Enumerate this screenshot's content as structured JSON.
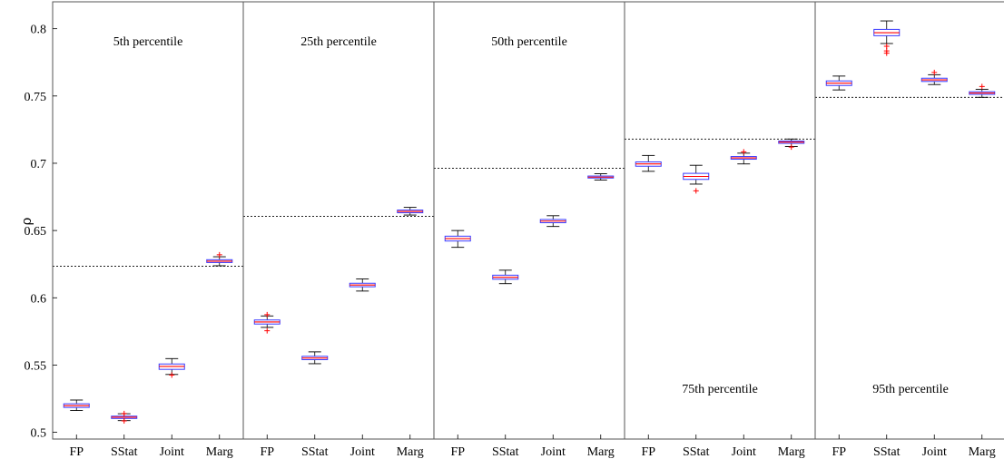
{
  "chart_data": {
    "type": "box",
    "ylabel": "ρ",
    "ylim": [
      0.495,
      0.82
    ],
    "yticks": [
      0.5,
      0.55,
      0.6,
      0.65,
      0.7,
      0.75,
      0.8
    ],
    "ytick_labels": [
      "0.5",
      "0.55",
      "0.6",
      "0.65",
      "0.7",
      "0.75",
      "0.8"
    ],
    "categories": [
      "FP",
      "SStat",
      "Joint",
      "Marg"
    ],
    "colors": {
      "box": "#3a3aff",
      "median": "#ff0000",
      "whisker": "#000000",
      "outlier": "#ff0000",
      "reference": "#000000"
    },
    "panels": [
      {
        "label": "5th percentile",
        "label_position": "top",
        "reference": 0.6235,
        "boxes": [
          {
            "q1": 0.5185,
            "median": 0.5198,
            "q3": 0.5212,
            "low": 0.5162,
            "high": 0.524,
            "outliers": []
          },
          {
            "q1": 0.5103,
            "median": 0.5112,
            "q3": 0.512,
            "low": 0.5087,
            "high": 0.5138,
            "outliers": [
              0.5085,
              0.514
            ]
          },
          {
            "q1": 0.5468,
            "median": 0.549,
            "q3": 0.5508,
            "low": 0.543,
            "high": 0.5548,
            "outliers": [
              0.5425
            ]
          },
          {
            "q1": 0.6262,
            "median": 0.6272,
            "q3": 0.6283,
            "low": 0.6238,
            "high": 0.6305,
            "outliers": [
              0.632
            ]
          }
        ]
      },
      {
        "label": "25th percentile",
        "label_position": "top",
        "reference": 0.6605,
        "boxes": [
          {
            "q1": 0.5805,
            "median": 0.582,
            "q3": 0.5835,
            "low": 0.578,
            "high": 0.5865,
            "outliers": [
              0.5755,
              0.5875
            ]
          },
          {
            "q1": 0.554,
            "median": 0.5552,
            "q3": 0.5565,
            "low": 0.551,
            "high": 0.5598,
            "outliers": []
          },
          {
            "q1": 0.6082,
            "median": 0.6095,
            "q3": 0.6108,
            "low": 0.605,
            "high": 0.614,
            "outliers": []
          },
          {
            "q1": 0.6632,
            "median": 0.6642,
            "q3": 0.6652,
            "low": 0.6615,
            "high": 0.6672,
            "outliers": []
          }
        ]
      },
      {
        "label": "50th percentile",
        "label_position": "top",
        "reference": 0.6963,
        "boxes": [
          {
            "q1": 0.6422,
            "median": 0.644,
            "q3": 0.6458,
            "low": 0.6375,
            "high": 0.65,
            "outliers": []
          },
          {
            "q1": 0.6138,
            "median": 0.6152,
            "q3": 0.6168,
            "low": 0.6105,
            "high": 0.6205,
            "outliers": []
          },
          {
            "q1": 0.6558,
            "median": 0.657,
            "q3": 0.6582,
            "low": 0.653,
            "high": 0.661,
            "outliers": []
          },
          {
            "q1": 0.689,
            "median": 0.6897,
            "q3": 0.6905,
            "low": 0.6875,
            "high": 0.6922,
            "outliers": []
          }
        ]
      },
      {
        "label": "75th percentile",
        "label_position": "bottom",
        "reference": 0.718,
        "boxes": [
          {
            "q1": 0.6978,
            "median": 0.6995,
            "q3": 0.701,
            "low": 0.694,
            "high": 0.7058,
            "outliers": []
          },
          {
            "q1": 0.688,
            "median": 0.6902,
            "q3": 0.6925,
            "low": 0.6845,
            "high": 0.6985,
            "outliers": [
              0.6795
            ]
          },
          {
            "q1": 0.703,
            "median": 0.704,
            "q3": 0.705,
            "low": 0.6995,
            "high": 0.7075,
            "outliers": [
              0.7085
            ]
          },
          {
            "q1": 0.7148,
            "median": 0.7157,
            "q3": 0.7165,
            "low": 0.7125,
            "high": 0.718,
            "outliers": [
              0.712
            ]
          }
        ]
      },
      {
        "label": "95th percentile",
        "label_position": "bottom",
        "reference": 0.749,
        "boxes": [
          {
            "q1": 0.7578,
            "median": 0.7595,
            "q3": 0.7612,
            "low": 0.7545,
            "high": 0.7648,
            "outliers": []
          },
          {
            "q1": 0.7948,
            "median": 0.797,
            "q3": 0.7995,
            "low": 0.789,
            "high": 0.8058,
            "outliers": [
              0.787,
              0.7835,
              0.7818
            ]
          },
          {
            "q1": 0.7608,
            "median": 0.762,
            "q3": 0.7632,
            "low": 0.7585,
            "high": 0.7658,
            "outliers": [
              0.7675
            ]
          },
          {
            "q1": 0.7512,
            "median": 0.7522,
            "q3": 0.7532,
            "low": 0.749,
            "high": 0.755,
            "outliers": [
              0.757
            ]
          }
        ]
      }
    ]
  }
}
